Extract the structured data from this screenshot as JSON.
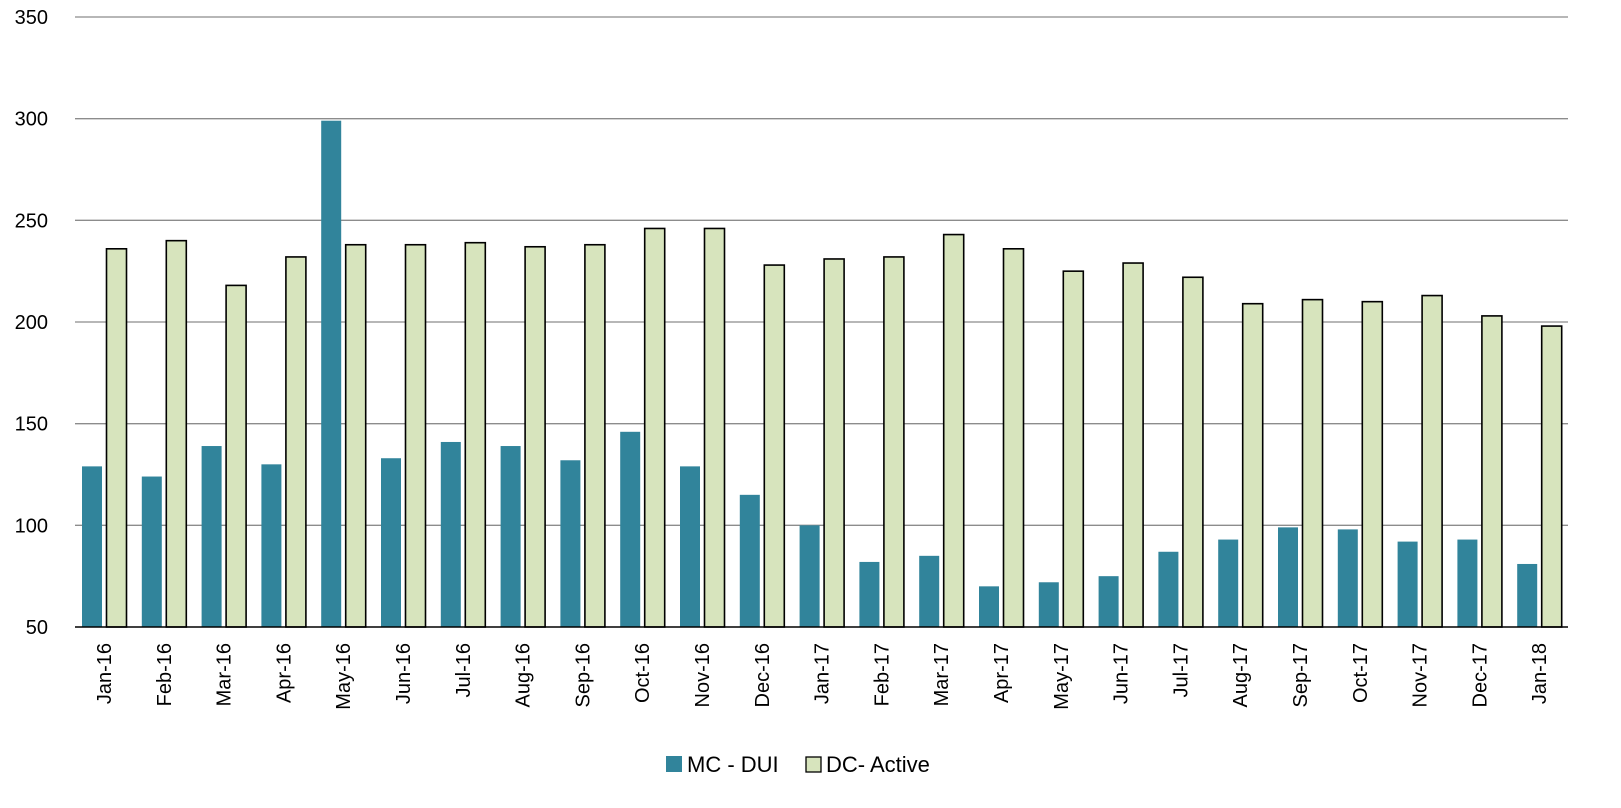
{
  "chart_data": {
    "type": "bar",
    "title": "",
    "xlabel": "",
    "ylabel": "",
    "ylim": [
      50,
      350
    ],
    "yticks": [
      50,
      100,
      150,
      200,
      250,
      300,
      350
    ],
    "grid": true,
    "legend_position": "bottom",
    "categories": [
      "Jan-16",
      "Feb-16",
      "Mar-16",
      "Apr-16",
      "May-16",
      "Jun-16",
      "Jul-16",
      "Aug-16",
      "Sep-16",
      "Oct-16",
      "Nov-16",
      "Dec-16",
      "Jan-17",
      "Feb-17",
      "Mar-17",
      "Apr-17",
      "May-17",
      "Jun-17",
      "Jul-17",
      "Aug-17",
      "Sep-17",
      "Oct-17",
      "Nov-17",
      "Dec-17",
      "Jan-18"
    ],
    "series": [
      {
        "name": "MC - DUI",
        "color": "#31849b",
        "values": [
          129,
          124,
          139,
          130,
          299,
          133,
          141,
          139,
          132,
          146,
          129,
          115,
          100,
          82,
          85,
          70,
          72,
          75,
          87,
          93,
          99,
          98,
          92,
          93,
          81
        ]
      },
      {
        "name": "DC- Active",
        "color": "#d7e4bd",
        "values": [
          236,
          240,
          218,
          232,
          238,
          238,
          239,
          237,
          238,
          246,
          246,
          228,
          231,
          232,
          243,
          236,
          225,
          229,
          222,
          209,
          211,
          210,
          213,
          203,
          198
        ]
      }
    ]
  }
}
